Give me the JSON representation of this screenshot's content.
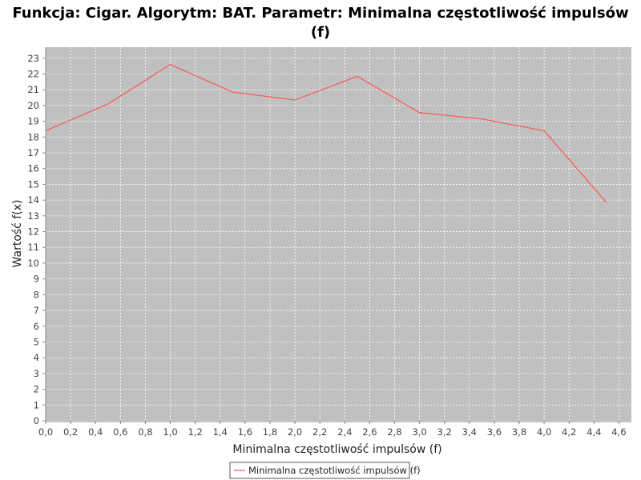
{
  "chart_data": {
    "type": "line",
    "title_line1": "Funkcja: Cigar. Algorytm: BAT. Parametr: Minimalna częstotliwość impulsów",
    "title_line2": "(f)",
    "xlabel": "Minimalna częstotliwość impulsów (f)",
    "ylabel": "Wartość f(x)",
    "xlim": [
      0.0,
      4.7
    ],
    "ylim": [
      0,
      23.7
    ],
    "xticks": [
      "0,0",
      "0,2",
      "0,4",
      "0,6",
      "0,8",
      "1,0",
      "1,2",
      "1,4",
      "1,6",
      "1,8",
      "2,0",
      "2,2",
      "2,4",
      "2,6",
      "2,8",
      "3,0",
      "3,2",
      "3,4",
      "3,6",
      "3,8",
      "4,0",
      "4,2",
      "4,4",
      "4,6"
    ],
    "yticks": [
      "0",
      "1",
      "2",
      "3",
      "4",
      "5",
      "6",
      "7",
      "8",
      "9",
      "10",
      "11",
      "12",
      "13",
      "14",
      "15",
      "16",
      "17",
      "18",
      "19",
      "20",
      "21",
      "22",
      "23"
    ],
    "grid": true,
    "legend_position": "bottom-center",
    "series": [
      {
        "name": "Minimalna częstotliwość impulsów (f)",
        "color": "#ff5555",
        "x": [
          0.0,
          0.5,
          1.0,
          1.5,
          2.0,
          2.5,
          3.0,
          3.5,
          4.0,
          4.5
        ],
        "y": [
          18.4,
          20.1,
          22.6,
          20.85,
          20.35,
          21.85,
          19.55,
          19.15,
          18.4,
          13.85
        ]
      }
    ]
  },
  "colors": {
    "plot_background": "#c0c0c0",
    "gridline": "#ffffff"
  }
}
